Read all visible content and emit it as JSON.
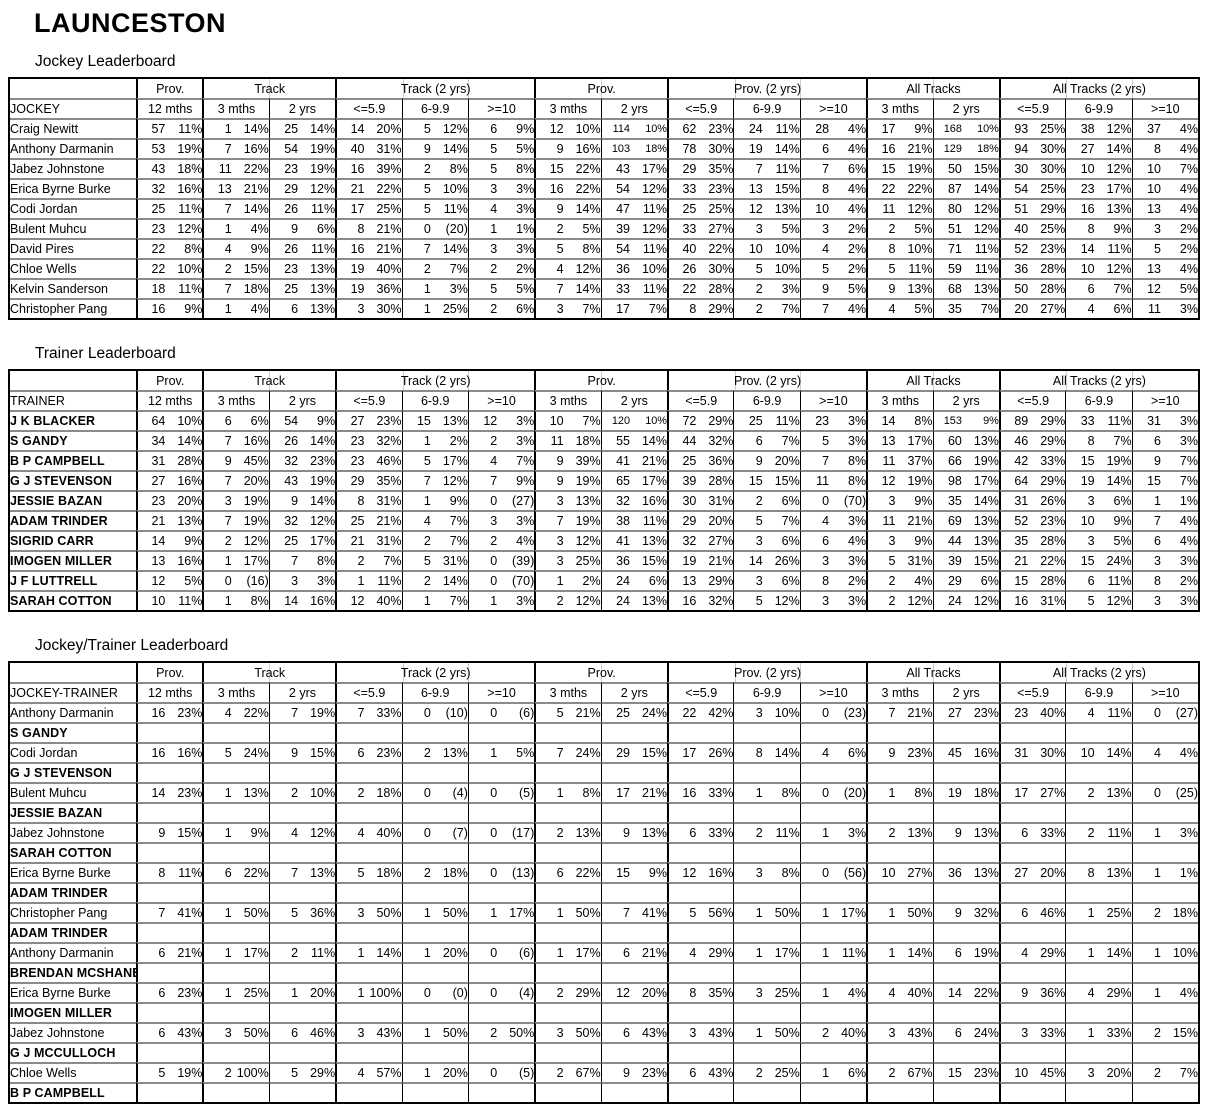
{
  "page_title": "LAUNCESTON",
  "columns": {
    "groups": [
      {
        "label": "Prov.",
        "cols": [
          "12 mths"
        ]
      },
      {
        "label": "Track",
        "cols": [
          "3 mths",
          "2 yrs"
        ]
      },
      {
        "label": "Track (2 yrs)",
        "cols": [
          "<=5.9",
          "6-9.9",
          ">=10"
        ]
      },
      {
        "label": "Prov.",
        "cols": [
          "3 mths",
          "2 yrs"
        ]
      },
      {
        "label": "Prov. (2 yrs)",
        "cols": [
          "<=5.9",
          "6-9.9",
          ">=10"
        ]
      },
      {
        "label": "All Tracks",
        "cols": [
          "3 mths",
          "2 yrs"
        ]
      },
      {
        "label": "All Tracks (2 yrs)",
        "cols": [
          "<=5.9",
          "6-9.9",
          ">=10"
        ]
      }
    ]
  },
  "tables": [
    {
      "title": "Jockey Leaderboard",
      "row_header": "JOCKEY",
      "name_style": "normal",
      "rows": [
        {
          "name": "Craig Newitt",
          "cells": [
            "57 11%",
            "1 14%",
            "25 14%",
            "14 20%",
            "5 12%",
            "6 9%",
            "12 10%",
            "114 10%",
            "62 23%",
            "24 11%",
            "28 4%",
            "17 9%",
            "168 10%",
            "93 25%",
            "38 12%",
            "37 4%"
          ]
        },
        {
          "name": "Anthony Darmanin",
          "cells": [
            "53 19%",
            "7 16%",
            "54 19%",
            "40 31%",
            "9 14%",
            "5 5%",
            "9 16%",
            "103 18%",
            "78 30%",
            "19 14%",
            "6 4%",
            "16 21%",
            "129 18%",
            "94 30%",
            "27 14%",
            "8 4%"
          ]
        },
        {
          "name": "Jabez Johnstone",
          "cells": [
            "43 18%",
            "11 22%",
            "23 19%",
            "16 39%",
            "2 8%",
            "5 8%",
            "15 22%",
            "43 17%",
            "29 35%",
            "7 11%",
            "7 6%",
            "15 19%",
            "50 15%",
            "30 30%",
            "10 12%",
            "10 7%"
          ]
        },
        {
          "name": "Erica Byrne Burke",
          "cells": [
            "32 16%",
            "13 21%",
            "29 12%",
            "21 22%",
            "5 10%",
            "3 3%",
            "16 22%",
            "54 12%",
            "33 23%",
            "13 15%",
            "8 4%",
            "22 22%",
            "87 14%",
            "54 25%",
            "23 17%",
            "10 4%"
          ]
        },
        {
          "name": "Codi Jordan",
          "cells": [
            "25 11%",
            "7 14%",
            "26 11%",
            "17 25%",
            "5 11%",
            "4 3%",
            "9 14%",
            "47 11%",
            "25 25%",
            "12 13%",
            "10 4%",
            "11 12%",
            "80 12%",
            "51 29%",
            "16 13%",
            "13 4%"
          ]
        },
        {
          "name": "Bulent Muhcu",
          "cells": [
            "23 12%",
            "1 4%",
            "9 6%",
            "8 21%",
            "0 (20)",
            "1 1%",
            "2 5%",
            "39 12%",
            "33 27%",
            "3 5%",
            "3 2%",
            "2 5%",
            "51 12%",
            "40 25%",
            "8 9%",
            "3 2%"
          ]
        },
        {
          "name": "David Pires",
          "cells": [
            "22 8%",
            "4 9%",
            "26 11%",
            "16 21%",
            "7 14%",
            "3 3%",
            "5 8%",
            "54 11%",
            "40 22%",
            "10 10%",
            "4 2%",
            "8 10%",
            "71 11%",
            "52 23%",
            "14 11%",
            "5 2%"
          ]
        },
        {
          "name": "Chloe Wells",
          "cells": [
            "22 10%",
            "2 15%",
            "23 13%",
            "19 40%",
            "2 7%",
            "2 2%",
            "4 12%",
            "36 10%",
            "26 30%",
            "5 10%",
            "5 2%",
            "5 11%",
            "59 11%",
            "36 28%",
            "10 12%",
            "13 4%"
          ]
        },
        {
          "name": "Kelvin Sanderson",
          "cells": [
            "18 11%",
            "7 18%",
            "25 13%",
            "19 36%",
            "1 3%",
            "5 5%",
            "7 14%",
            "33 11%",
            "22 28%",
            "2 3%",
            "9 5%",
            "9 13%",
            "68 13%",
            "50 28%",
            "6 7%",
            "12 5%"
          ]
        },
        {
          "name": "Christopher Pang",
          "cells": [
            "16 9%",
            "1 4%",
            "6 13%",
            "3 30%",
            "1 25%",
            "2 6%",
            "3 7%",
            "17 7%",
            "8 29%",
            "2 7%",
            "7 4%",
            "4 5%",
            "35 7%",
            "20 27%",
            "4 6%",
            "11 3%"
          ]
        }
      ]
    },
    {
      "title": "Trainer Leaderboard",
      "row_header": "TRAINER",
      "name_style": "small",
      "rows": [
        {
          "name": "J K BLACKER",
          "cells": [
            "64 10%",
            "6 6%",
            "54 9%",
            "27 23%",
            "15 13%",
            "12 3%",
            "10 7%",
            "120 10%",
            "72 29%",
            "25 11%",
            "23 3%",
            "14 8%",
            "153 9%",
            "89 29%",
            "33 11%",
            "31 3%"
          ]
        },
        {
          "name": "S GANDY",
          "cells": [
            "34 14%",
            "7 16%",
            "26 14%",
            "23 32%",
            "1 2%",
            "2 3%",
            "11 18%",
            "55 14%",
            "44 32%",
            "6 7%",
            "5 3%",
            "13 17%",
            "60 13%",
            "46 29%",
            "8 7%",
            "6 3%"
          ]
        },
        {
          "name": "B P CAMPBELL",
          "cells": [
            "31 28%",
            "9 45%",
            "32 23%",
            "23 46%",
            "5 17%",
            "4 7%",
            "9 39%",
            "41 21%",
            "25 36%",
            "9 20%",
            "7 8%",
            "11 37%",
            "66 19%",
            "42 33%",
            "15 19%",
            "9 7%"
          ]
        },
        {
          "name": "G J STEVENSON",
          "cells": [
            "27 16%",
            "7 20%",
            "43 19%",
            "29 35%",
            "7 12%",
            "7 9%",
            "9 19%",
            "65 17%",
            "39 28%",
            "15 15%",
            "11 8%",
            "12 19%",
            "98 17%",
            "64 29%",
            "19 14%",
            "15 7%"
          ]
        },
        {
          "name": "JESSIE BAZAN",
          "cells": [
            "23 20%",
            "3 19%",
            "9 14%",
            "8 31%",
            "1 9%",
            "0 (27)",
            "3 13%",
            "32 16%",
            "30 31%",
            "2 6%",
            "0 (70)",
            "3 9%",
            "35 14%",
            "31 26%",
            "3 6%",
            "1 1%"
          ]
        },
        {
          "name": "ADAM TRINDER",
          "cells": [
            "21 13%",
            "7 19%",
            "32 12%",
            "25 21%",
            "4 7%",
            "3 3%",
            "7 19%",
            "38 11%",
            "29 20%",
            "5 7%",
            "4 3%",
            "11 21%",
            "69 13%",
            "52 23%",
            "10 9%",
            "7 4%"
          ]
        },
        {
          "name": "SIGRID CARR",
          "cells": [
            "14 9%",
            "2 12%",
            "25 17%",
            "21 31%",
            "2 7%",
            "2 4%",
            "3 12%",
            "41 13%",
            "32 27%",
            "3 6%",
            "6 4%",
            "3 9%",
            "44 13%",
            "35 28%",
            "3 5%",
            "6 4%"
          ]
        },
        {
          "name": "IMOGEN MILLER",
          "cells": [
            "13 16%",
            "1 17%",
            "7 8%",
            "2 7%",
            "5 31%",
            "0 (39)",
            "3 25%",
            "36 15%",
            "19 21%",
            "14 26%",
            "3 3%",
            "5 31%",
            "39 15%",
            "21 22%",
            "15 24%",
            "3 3%"
          ]
        },
        {
          "name": "J F LUTTRELL",
          "cells": [
            "12 5%",
            "0 (16)",
            "3 3%",
            "1 11%",
            "2 14%",
            "0 (70)",
            "1 2%",
            "24 6%",
            "13 29%",
            "3 6%",
            "8 2%",
            "2 4%",
            "29 6%",
            "15 28%",
            "6 11%",
            "8 2%"
          ]
        },
        {
          "name": "SARAH COTTON",
          "cells": [
            "10 11%",
            "1 8%",
            "14 16%",
            "12 40%",
            "1 7%",
            "1 3%",
            "2 12%",
            "24 13%",
            "16 32%",
            "5 12%",
            "3 3%",
            "2 12%",
            "24 12%",
            "16 31%",
            "5 12%",
            "3 3%"
          ]
        }
      ]
    },
    {
      "title": "Jockey/Trainer Leaderboard",
      "row_header": "JOCKEY-TRAINER",
      "name_style": "normal",
      "rows": [
        {
          "name": "Anthony Darmanin",
          "subname": "S GANDY",
          "cells": [
            "16 23%",
            "4 22%",
            "7 19%",
            "7 33%",
            "0 (10)",
            "0 (6)",
            "5 21%",
            "25 24%",
            "22 42%",
            "3 10%",
            "0 (23)",
            "7 21%",
            "27 23%",
            "23 40%",
            "4 11%",
            "0 (27)"
          ]
        },
        {
          "name": "Codi Jordan",
          "subname": "G J STEVENSON",
          "cells": [
            "16 16%",
            "5 24%",
            "9 15%",
            "6 23%",
            "2 13%",
            "1 5%",
            "7 24%",
            "29 15%",
            "17 26%",
            "8 14%",
            "4 6%",
            "9 23%",
            "45 16%",
            "31 30%",
            "10 14%",
            "4 4%"
          ]
        },
        {
          "name": "Bulent Muhcu",
          "subname": "JESSIE BAZAN",
          "cells": [
            "14 23%",
            "1 13%",
            "2 10%",
            "2 18%",
            "0 (4)",
            "0 (5)",
            "1 8%",
            "17 21%",
            "16 33%",
            "1 8%",
            "0 (20)",
            "1 8%",
            "19 18%",
            "17 27%",
            "2 13%",
            "0 (25)"
          ]
        },
        {
          "name": "Jabez Johnstone",
          "subname": "SARAH COTTON",
          "cells": [
            "9 15%",
            "1 9%",
            "4 12%",
            "4 40%",
            "0 (7)",
            "0 (17)",
            "2 13%",
            "9 13%",
            "6 33%",
            "2 11%",
            "1 3%",
            "2 13%",
            "9 13%",
            "6 33%",
            "2 11%",
            "1 3%"
          ]
        },
        {
          "name": "Erica Byrne Burke",
          "subname": "ADAM TRINDER",
          "cells": [
            "8 11%",
            "6 22%",
            "7 13%",
            "5 18%",
            "2 18%",
            "0 (13)",
            "6 22%",
            "15 9%",
            "12 16%",
            "3 8%",
            "0 (56)",
            "10 27%",
            "36 13%",
            "27 20%",
            "8 13%",
            "1 1%"
          ]
        },
        {
          "name": "Christopher Pang",
          "subname": "ADAM TRINDER",
          "cells": [
            "7 41%",
            "1 50%",
            "5 36%",
            "3 50%",
            "1 50%",
            "1 17%",
            "1 50%",
            "7 41%",
            "5 56%",
            "1 50%",
            "1 17%",
            "1 50%",
            "9 32%",
            "6 46%",
            "1 25%",
            "2 18%"
          ]
        },
        {
          "name": "Anthony Darmanin",
          "subname": "BRENDAN MCSHANE",
          "cells": [
            "6 21%",
            "1 17%",
            "2 11%",
            "1 14%",
            "1 20%",
            "0 (6)",
            "1 17%",
            "6 21%",
            "4 29%",
            "1 17%",
            "1 11%",
            "1 14%",
            "6 19%",
            "4 29%",
            "1 14%",
            "1 10%"
          ]
        },
        {
          "name": "Erica Byrne Burke",
          "subname": "IMOGEN MILLER",
          "cells": [
            "6 23%",
            "1 25%",
            "1 20%",
            "1 100%",
            "0 (0)",
            "0 (4)",
            "2 29%",
            "12 20%",
            "8 35%",
            "3 25%",
            "1 4%",
            "4 40%",
            "14 22%",
            "9 36%",
            "4 29%",
            "1 4%"
          ]
        },
        {
          "name": "Jabez Johnstone",
          "subname": "G J MCCULLOCH",
          "cells": [
            "6 43%",
            "3 50%",
            "6 46%",
            "3 43%",
            "1 50%",
            "2 50%",
            "3 50%",
            "6 43%",
            "3 43%",
            "1 50%",
            "2 40%",
            "3 43%",
            "6 24%",
            "3 33%",
            "1 33%",
            "2 15%"
          ]
        },
        {
          "name": "Chloe Wells",
          "subname": "B P CAMPBELL",
          "cells": [
            "5 19%",
            "2 100%",
            "5 29%",
            "4 57%",
            "1 20%",
            "0 (5)",
            "2 67%",
            "9 23%",
            "6 43%",
            "2 25%",
            "1 6%",
            "2 67%",
            "15 23%",
            "10 45%",
            "3 20%",
            "2 7%"
          ]
        }
      ]
    }
  ]
}
